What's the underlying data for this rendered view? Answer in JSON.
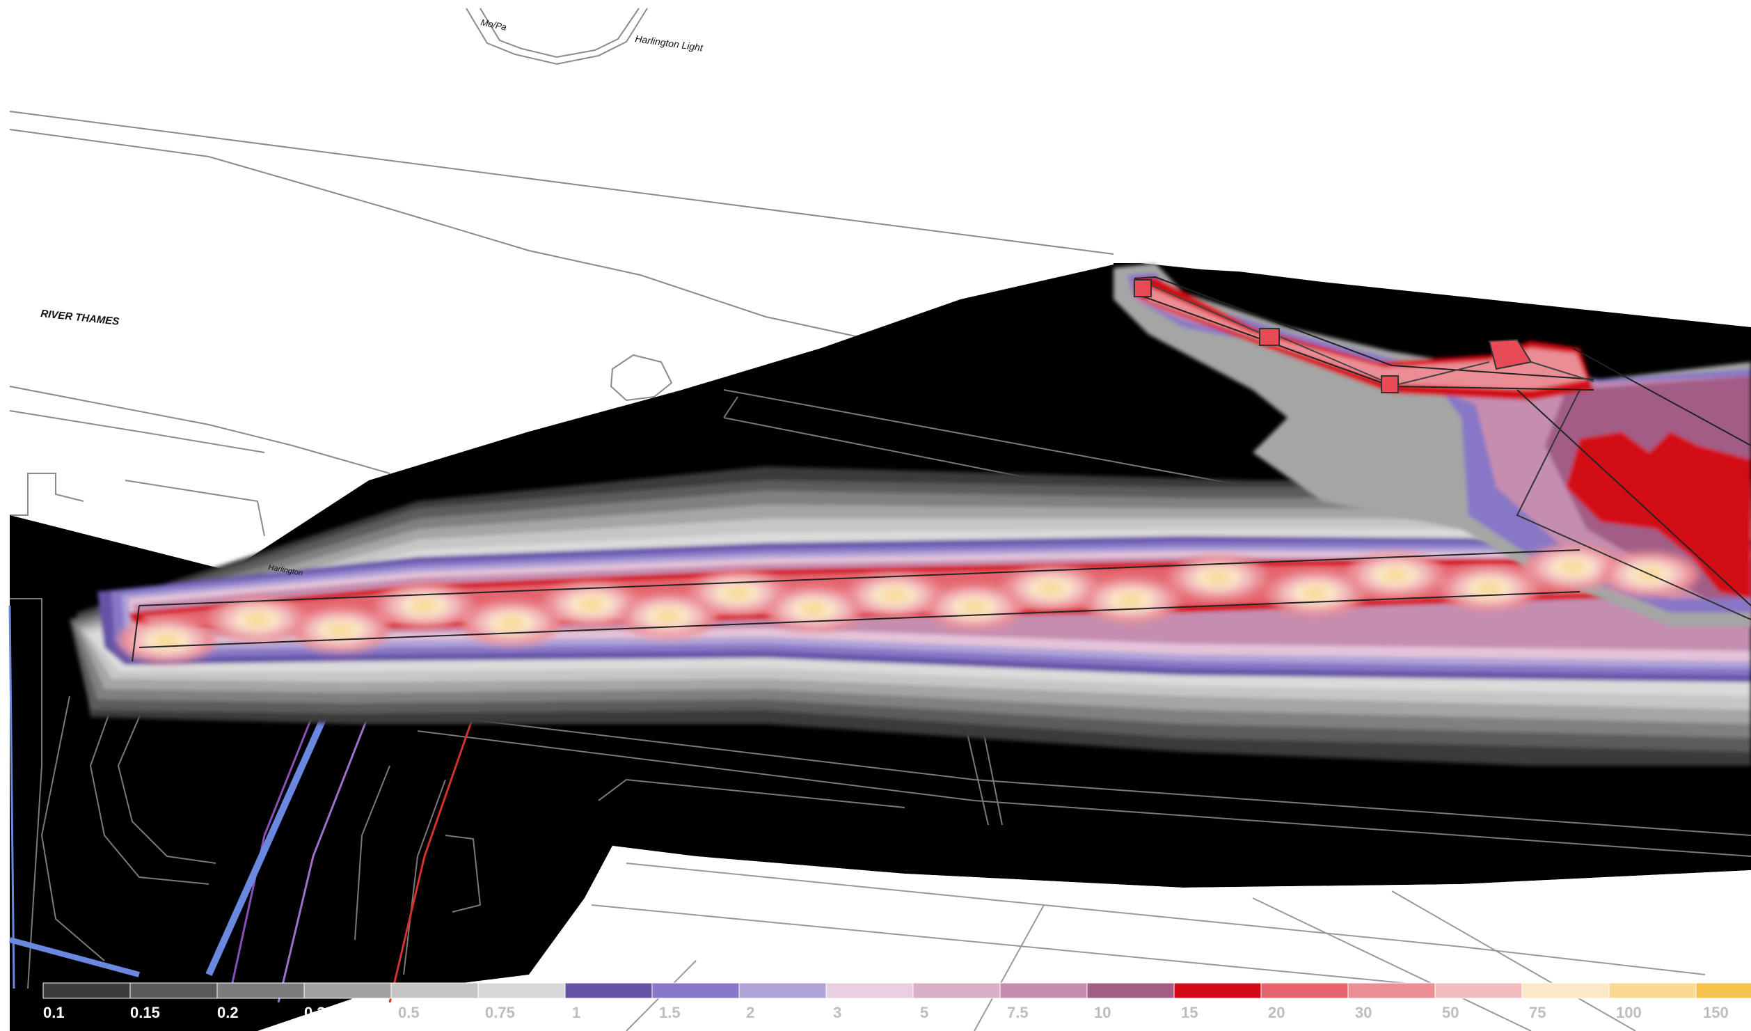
{
  "map": {
    "place_labels": {
      "top_small": "Mo/Pa",
      "harlington": "Harlington Light",
      "river": "RIVER THAMES",
      "road_small": "Harlington"
    },
    "legend": {
      "items": [
        {
          "value": "0.1",
          "color": "#3c3c3c"
        },
        {
          "value": "0.15",
          "color": "#5a5a5a"
        },
        {
          "value": "0.2",
          "color": "#7c7c7c"
        },
        {
          "value": "0.3",
          "color": "#a2a2a2"
        },
        {
          "value": "0.5",
          "color": "#c4c4c4"
        },
        {
          "value": "0.75",
          "color": "#d8d8d8"
        },
        {
          "value": "1",
          "color": "#6653a8"
        },
        {
          "value": "1.5",
          "color": "#8877c6"
        },
        {
          "value": "2",
          "color": "#afa3d8"
        },
        {
          "value": "3",
          "color": "#e9cfe0"
        },
        {
          "value": "5",
          "color": "#d9aec8"
        },
        {
          "value": "7.5",
          "color": "#c58db0"
        },
        {
          "value": "10",
          "color": "#a15d86"
        },
        {
          "value": "15",
          "color": "#d30b18"
        },
        {
          "value": "20",
          "color": "#e4636d"
        },
        {
          "value": "30",
          "color": "#eb8d94"
        },
        {
          "value": "50",
          "color": "#f3bdc0"
        },
        {
          "value": "75",
          "color": "#fae8c8"
        },
        {
          "value": "100",
          "color": "#f9d994"
        },
        {
          "value": "150",
          "color": "#f5c24c"
        }
      ]
    },
    "colors": {
      "background": "#ffffff",
      "dark_zone": "#000000",
      "linework": "#888888"
    }
  }
}
